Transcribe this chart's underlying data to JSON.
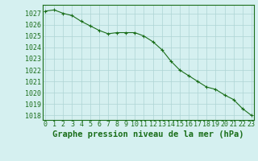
{
  "x": [
    0,
    1,
    2,
    3,
    4,
    5,
    6,
    7,
    8,
    9,
    10,
    11,
    12,
    13,
    14,
    15,
    16,
    17,
    18,
    19,
    20,
    21,
    22,
    23
  ],
  "y": [
    1027.2,
    1027.3,
    1027.0,
    1026.8,
    1026.3,
    1025.9,
    1025.5,
    1025.2,
    1025.3,
    1025.3,
    1025.3,
    1025.0,
    1024.5,
    1023.8,
    1022.8,
    1022.0,
    1021.5,
    1021.0,
    1020.5,
    1020.3,
    1019.8,
    1019.4,
    1018.6,
    1018.0
  ],
  "line_color": "#1a6e1a",
  "marker": "+",
  "marker_size": 3.5,
  "marker_lw": 0.8,
  "line_width": 0.8,
  "bg_color": "#d5f0f0",
  "grid_color": "#aed4d4",
  "title": "Graphe pression niveau de la mer (hPa)",
  "xlabel_ticks": [
    0,
    1,
    2,
    3,
    4,
    5,
    6,
    7,
    8,
    9,
    10,
    11,
    12,
    13,
    14,
    15,
    16,
    17,
    18,
    19,
    20,
    21,
    22,
    23
  ],
  "ytick_labels": [
    1018,
    1019,
    1020,
    1021,
    1022,
    1023,
    1024,
    1025,
    1026,
    1027
  ],
  "ylim": [
    1017.6,
    1027.75
  ],
  "xlim": [
    -0.3,
    23.3
  ],
  "title_fontsize": 7.5,
  "tick_fontsize": 6.0,
  "title_color": "#1a6e1a",
  "tick_color": "#1a6e1a",
  "axis_color": "#1a6e1a",
  "spine_lw": 0.8
}
